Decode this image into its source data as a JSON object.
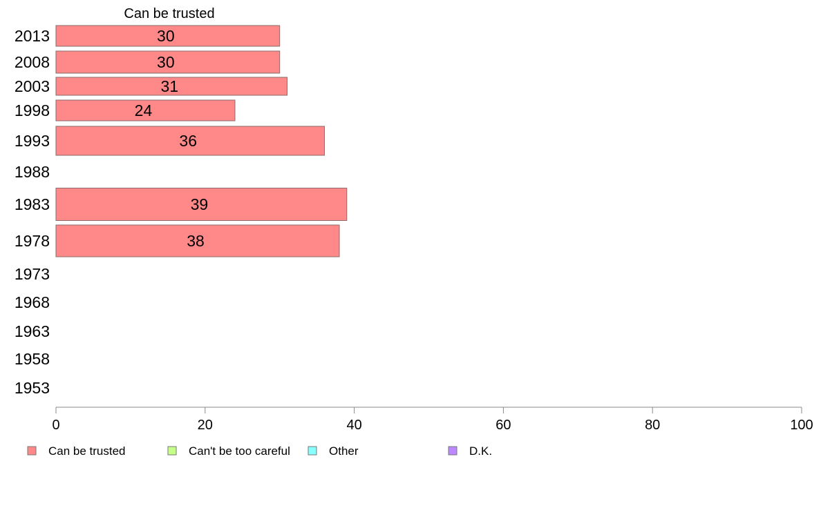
{
  "chart_data": {
    "type": "bar",
    "orientation": "horizontal",
    "title": "Can be trusted",
    "categories": [
      "2013",
      "2008",
      "2003",
      "1998",
      "1993",
      "1988",
      "1983",
      "1978",
      "1973",
      "1968",
      "1963",
      "1958",
      "1953"
    ],
    "series": [
      {
        "name": "Can be trusted",
        "color": "#ff8888",
        "values": [
          30,
          30,
          31,
          24,
          36,
          null,
          39,
          38,
          null,
          null,
          null,
          null,
          null
        ],
        "labels": [
          "30",
          "30",
          "31",
          "24",
          "36",
          "",
          "39",
          "38",
          "",
          "",
          "",
          "",
          ""
        ]
      }
    ],
    "xlim": [
      0,
      100
    ],
    "xticks": [
      "0",
      "20",
      "40",
      "60",
      "80",
      "100"
    ],
    "grid": false,
    "legend": {
      "placement": "bottom",
      "entries": [
        {
          "label": "Can be trusted",
          "color": "#ff8888"
        },
        {
          "label": "Can't be too careful",
          "color": "#c6ff88"
        },
        {
          "label": "Other",
          "color": "#88ffff"
        },
        {
          "label": "D.K.",
          "color": "#bb88ff"
        }
      ]
    }
  }
}
